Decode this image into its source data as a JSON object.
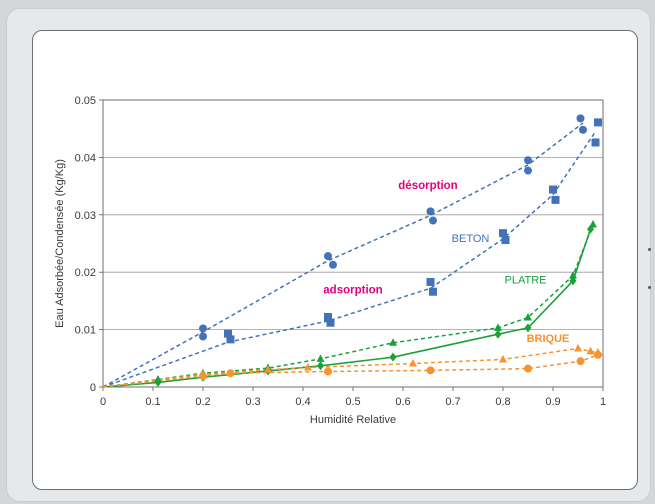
{
  "chart_data": {
    "type": "scatter",
    "title": "",
    "xlabel": "Humidité Relative",
    "ylabel": "Eau Adsorbée/Condensée (Kg/Kg)",
    "xlim": [
      0,
      1
    ],
    "ylim": [
      0,
      0.05
    ],
    "x_ticks": [
      "0",
      "0.1",
      "0.2",
      "0.3",
      "0.4",
      "0.5",
      "0.6",
      "0.7",
      "0.8",
      "0.9",
      "1"
    ],
    "y_ticks": [
      "0",
      "0.01",
      "0.02",
      "0.03",
      "0.04",
      "0.05"
    ],
    "grid": "horizontal",
    "colors": {
      "beton": "#4472b8",
      "platre": "#1aa13a",
      "brique": "#f7932f",
      "annotation": "#e6007e"
    },
    "annotations": [
      {
        "text": "désorption",
        "x": 0.65,
        "y": 0.0345,
        "color": "#e6007e"
      },
      {
        "text": "BETON",
        "x": 0.735,
        "y": 0.0253,
        "color": "#4472b8"
      },
      {
        "text": "adsorption",
        "x": 0.5,
        "y": 0.0163,
        "color": "#e6007e"
      },
      {
        "text": "PLATRE",
        "x": 0.845,
        "y": 0.018,
        "color": "#1aa13a"
      },
      {
        "text": "BRIQUE",
        "x": 0.89,
        "y": 0.0078,
        "color": "#f7932f"
      }
    ],
    "series": [
      {
        "material": "beton",
        "kind": "desorption-points",
        "marker": "circle",
        "color": "#4472b8",
        "line": "none",
        "x": [
          0.2,
          0.2,
          0.45,
          0.46,
          0.655,
          0.66,
          0.85,
          0.85,
          0.955,
          0.96
        ],
        "y": [
          0.0102,
          0.0088,
          0.0228,
          0.0213,
          0.0306,
          0.029,
          0.0395,
          0.0377,
          0.0468,
          0.0448
        ]
      },
      {
        "material": "beton",
        "kind": "desorption-fit",
        "color": "#4472b8",
        "line": "dashed",
        "x": [
          0,
          0.2,
          0.45,
          0.655,
          0.85,
          0.96
        ],
        "y": [
          0,
          0.0096,
          0.022,
          0.0299,
          0.0387,
          0.046
        ]
      },
      {
        "material": "beton",
        "kind": "adsorption-points",
        "marker": "square",
        "color": "#4472b8",
        "line": "none",
        "x": [
          0.25,
          0.255,
          0.45,
          0.455,
          0.655,
          0.66,
          0.8,
          0.805,
          0.9,
          0.905,
          0.985,
          0.99
        ],
        "y": [
          0.0093,
          0.0083,
          0.0122,
          0.0112,
          0.0183,
          0.0166,
          0.0268,
          0.0256,
          0.0344,
          0.0326,
          0.0426,
          0.0461
        ]
      },
      {
        "material": "beton",
        "kind": "adsorption-fit",
        "color": "#4472b8",
        "line": "dashed",
        "x": [
          0,
          0.25,
          0.45,
          0.655,
          0.8,
          0.9,
          0.985
        ],
        "y": [
          0,
          0.0078,
          0.0115,
          0.0172,
          0.0258,
          0.0335,
          0.0445
        ]
      },
      {
        "material": "platre",
        "kind": "adsorption-points",
        "marker": "diamond",
        "color": "#1aa13a",
        "line": "solid",
        "x": [
          0,
          0.11,
          0.2,
          0.33,
          0.435,
          0.58,
          0.79,
          0.85,
          0.94,
          0.975
        ],
        "y": [
          0,
          0.0008,
          0.0017,
          0.0028,
          0.0037,
          0.0052,
          0.0092,
          0.0103,
          0.0185,
          0.0275
        ]
      },
      {
        "material": "platre",
        "kind": "desorption-points",
        "marker": "triangle",
        "color": "#1aa13a",
        "line": "dashed",
        "x": [
          0,
          0.11,
          0.2,
          0.33,
          0.435,
          0.58,
          0.79,
          0.85,
          0.94,
          0.98
        ],
        "y": [
          0,
          0.0013,
          0.0024,
          0.0033,
          0.0049,
          0.0077,
          0.0103,
          0.0121,
          0.0194,
          0.0283
        ]
      },
      {
        "material": "brique",
        "kind": "desorption-points",
        "marker": "triangle",
        "color": "#f7932f",
        "line": "dashed",
        "x": [
          0,
          0.2,
          0.33,
          0.41,
          0.62,
          0.8,
          0.95,
          0.975,
          0.99
        ],
        "y": [
          0,
          0.0022,
          0.003,
          0.0034,
          0.0041,
          0.0048,
          0.0067,
          0.0062,
          0.006
        ]
      },
      {
        "material": "brique",
        "kind": "adsorption-points",
        "marker": "circle",
        "color": "#f7932f",
        "line": "dashed",
        "x": [
          0,
          0.2,
          0.255,
          0.45,
          0.655,
          0.85,
          0.955,
          0.99
        ],
        "y": [
          0,
          0.0019,
          0.0024,
          0.0027,
          0.0029,
          0.0032,
          0.0045,
          0.0056
        ]
      }
    ]
  }
}
